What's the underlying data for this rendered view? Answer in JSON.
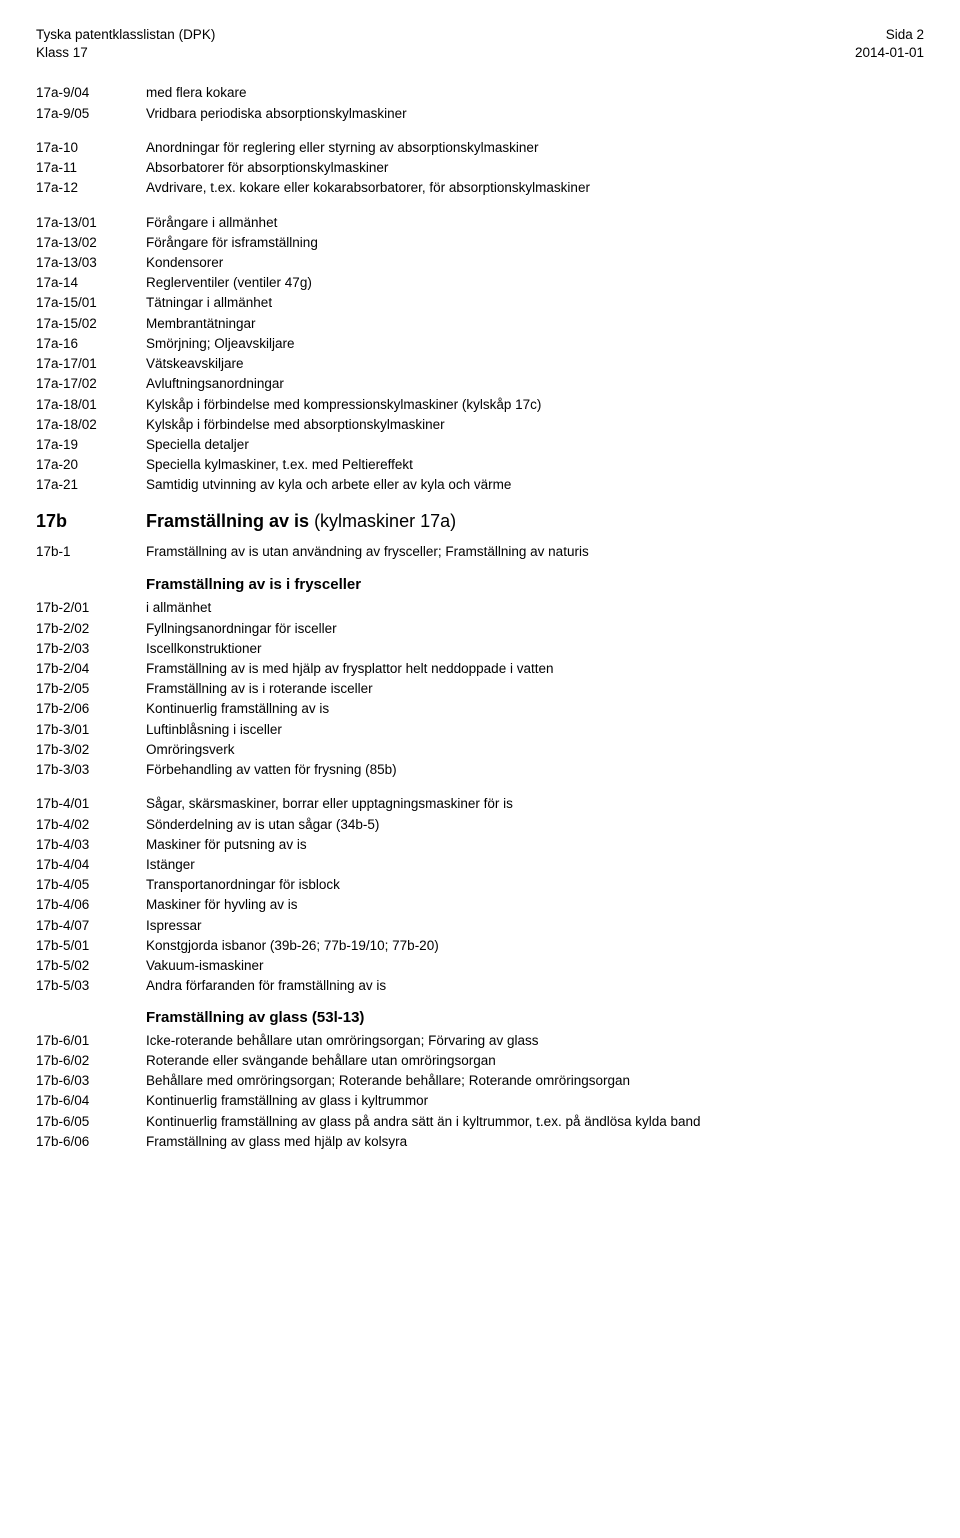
{
  "header": {
    "left_line1": "Tyska patentklasslistan (DPK)",
    "left_line2": "Klass 17",
    "right_line1": "Sida 2",
    "right_line2": "2014-01-01"
  },
  "group1": [
    {
      "code": "17a-9/04",
      "desc": "med flera kokare"
    },
    {
      "code": "17a-9/05",
      "desc": "Vridbara periodiska absorptionskylmaskiner"
    }
  ],
  "group2": [
    {
      "code": "17a-10",
      "desc": "Anordningar för reglering eller styrning av absorptionskylmaskiner"
    },
    {
      "code": "17a-11",
      "desc": "Absorbatorer för absorptionskylmaskiner"
    },
    {
      "code": "17a-12",
      "desc": "Avdrivare, t.ex. kokare eller kokarabsorbatorer, för absorptionskylmaskiner"
    }
  ],
  "group3": [
    {
      "code": "17a-13/01",
      "desc": "Förångare i allmänhet"
    },
    {
      "code": "17a-13/02",
      "desc": "Förångare för isframställning"
    },
    {
      "code": "17a-13/03",
      "desc": "Kondensorer"
    },
    {
      "code": "17a-14",
      "desc": "Reglerventiler (ventiler 47g)"
    },
    {
      "code": "17a-15/01",
      "desc": "Tätningar i allmänhet"
    },
    {
      "code": "17a-15/02",
      "desc": "Membrantätningar"
    },
    {
      "code": "17a-16",
      "desc": "Smörjning; Oljeavskiljare"
    },
    {
      "code": "17a-17/01",
      "desc": "Vätskeavskiljare"
    },
    {
      "code": "17a-17/02",
      "desc": "Avluftningsanordningar"
    },
    {
      "code": "17a-18/01",
      "desc": "Kylskåp i förbindelse med kompressionskylmaskiner (kylskåp 17c)"
    },
    {
      "code": "17a-18/02",
      "desc": "Kylskåp i förbindelse med absorptionskylmaskiner"
    },
    {
      "code": "17a-19",
      "desc": "Speciella detaljer"
    },
    {
      "code": "17a-20",
      "desc": "Speciella kylmaskiner, t.ex. med Peltiereffekt"
    },
    {
      "code": "17a-21",
      "desc": "Samtidig utvinning av kyla och arbete eller av kyla och värme"
    }
  ],
  "section_17b": {
    "code": "17b",
    "title_bold": "Framställning av is",
    "title_rest": " (kylmaskiner 17a)"
  },
  "row_17b1": {
    "code": "17b-1",
    "desc": "Framställning av is utan användning av frysceller; Framställning av naturis"
  },
  "sub1": "Framställning av is i frysceller",
  "group4": [
    {
      "code": "17b-2/01",
      "desc": "i allmänhet"
    },
    {
      "code": "17b-2/02",
      "desc": "Fyllningsanordningar för isceller"
    },
    {
      "code": "17b-2/03",
      "desc": "Iscellkonstruktioner"
    },
    {
      "code": "17b-2/04",
      "desc": "Framställning av is med hjälp av frysplattor helt neddoppade i vatten"
    },
    {
      "code": "17b-2/05",
      "desc": "Framställning av is i roterande isceller"
    },
    {
      "code": "17b-2/06",
      "desc": "Kontinuerlig framställning av is"
    },
    {
      "code": "17b-3/01",
      "desc": "Luftinblåsning i isceller"
    },
    {
      "code": "17b-3/02",
      "desc": "Omröringsverk"
    },
    {
      "code": "17b-3/03",
      "desc": "Förbehandling av vatten för frysning (85b)"
    }
  ],
  "group5": [
    {
      "code": "17b-4/01",
      "desc": "Sågar, skärsmaskiner, borrar eller upptagningsmaskiner för is"
    },
    {
      "code": "17b-4/02",
      "desc": "Sönderdelning av is utan sågar (34b-5)"
    },
    {
      "code": "17b-4/03",
      "desc": "Maskiner för putsning av is"
    },
    {
      "code": "17b-4/04",
      "desc": "Istänger"
    },
    {
      "code": "17b-4/05",
      "desc": "Transportanordningar för isblock"
    },
    {
      "code": "17b-4/06",
      "desc": "Maskiner för hyvling av is"
    },
    {
      "code": "17b-4/07",
      "desc": "Ispressar"
    },
    {
      "code": "17b-5/01",
      "desc": "Konstgjorda isbanor (39b-26; 77b-19/10; 77b-20)"
    },
    {
      "code": "17b-5/02",
      "desc": "Vakuum-ismaskiner"
    },
    {
      "code": "17b-5/03",
      "desc": "Andra förfaranden för framställning av is"
    }
  ],
  "sub2": "Framställning av glass (53l-13)",
  "group6": [
    {
      "code": "17b-6/01",
      "desc": "Icke-roterande behållare utan omröringsorgan; Förvaring av glass"
    },
    {
      "code": "17b-6/02",
      "desc": "Roterande eller svängande behållare utan omröringsorgan"
    },
    {
      "code": "17b-6/03",
      "desc": "Behållare med omröringsorgan; Roterande behållare; Roterande omröringsorgan"
    },
    {
      "code": "17b-6/04",
      "desc": "Kontinuerlig framställning av glass i kyltrummor"
    },
    {
      "code": "17b-6/05",
      "desc": "Kontinuerlig framställning av glass på andra sätt än i kyltrummor, t.ex. på ändlösa kylda band"
    },
    {
      "code": "17b-6/06",
      "desc": "Framställning av glass med hjälp av kolsyra"
    }
  ]
}
